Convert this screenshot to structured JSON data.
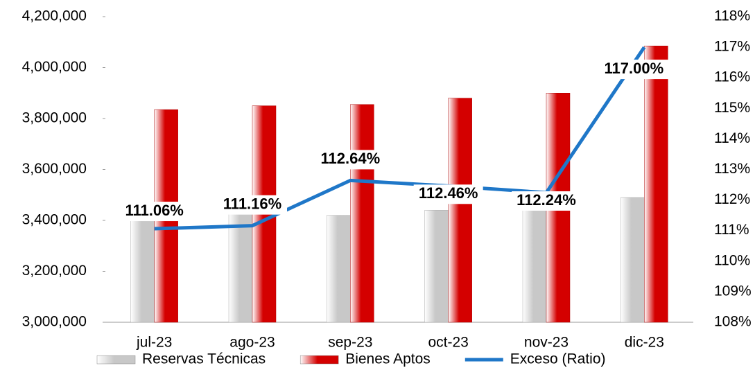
{
  "chart_data": {
    "type": "bar",
    "categories": [
      "jul-23",
      "ago-23",
      "sep-23",
      "oct-23",
      "nov-23",
      "dic-23"
    ],
    "series": [
      {
        "name": "Reservas Técnicas",
        "color": "#c8c8c8",
        "values": [
          3400000,
          3461000,
          3420000,
          3440000,
          3475000,
          3490000
        ]
      },
      {
        "name": "Bienes Aptos",
        "color": "#d40000",
        "values": [
          3835000,
          3850000,
          3855000,
          3880000,
          3900000,
          4085000
        ]
      },
      {
        "name": "Exceso (Ratio)",
        "type": "line",
        "axis": "y2",
        "color": "#1f77c8",
        "values": [
          111.06,
          111.16,
          112.64,
          112.46,
          112.24,
          117.0
        ],
        "value_labels": [
          "111.06%",
          "111.16%",
          "112.64%",
          "112.46%",
          "112.24%",
          "117.00%"
        ]
      }
    ],
    "ylim": [
      3000000,
      4200000
    ],
    "yticks": [
      {
        "value": 3000000,
        "label": "3,000,000"
      },
      {
        "value": 3200000,
        "label": "3,200,000"
      },
      {
        "value": 3400000,
        "label": "3,400,000"
      },
      {
        "value": 3600000,
        "label": "3,600,000"
      },
      {
        "value": 3800000,
        "label": "3,800,000"
      },
      {
        "value": 4000000,
        "label": "4,000,000"
      },
      {
        "value": 4200000,
        "label": "4,200,000"
      }
    ],
    "y2lim": [
      108,
      118
    ],
    "y2ticks": [
      {
        "value": 108,
        "label": "108%"
      },
      {
        "value": 109,
        "label": "109%"
      },
      {
        "value": 110,
        "label": "110%"
      },
      {
        "value": 111,
        "label": "111%"
      },
      {
        "value": 112,
        "label": "112%"
      },
      {
        "value": 113,
        "label": "113%"
      },
      {
        "value": 114,
        "label": "114%"
      },
      {
        "value": 115,
        "label": "115%"
      },
      {
        "value": 116,
        "label": "116%"
      },
      {
        "value": 117,
        "label": "117%"
      },
      {
        "value": 118,
        "label": "118%"
      }
    ],
    "legend": "bottom"
  }
}
